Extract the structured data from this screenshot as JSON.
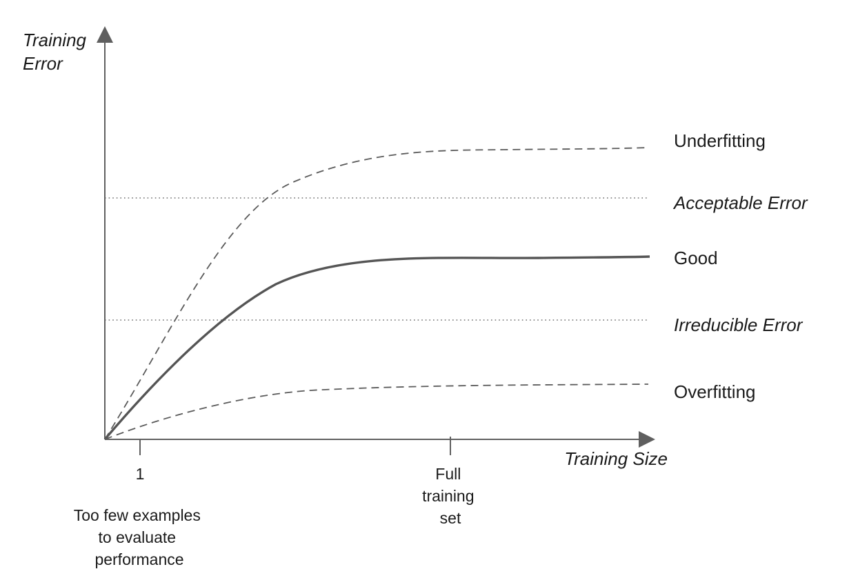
{
  "axes": {
    "y_title": [
      "Training",
      "Error"
    ],
    "x_title": "Training Size"
  },
  "ticks": [
    {
      "label": [
        "1"
      ],
      "note": [
        "Too few examples",
        "to evaluate",
        "performance"
      ]
    },
    {
      "label": [
        "Full",
        "training",
        "set"
      ]
    }
  ],
  "reference_lines": [
    {
      "name": "acceptable",
      "label": "Acceptable Error"
    },
    {
      "name": "irreducible",
      "label": "Irreducible Error"
    }
  ],
  "curves": [
    {
      "name": "underfitting",
      "label": "Underfitting",
      "style": "dashed"
    },
    {
      "name": "good",
      "label": "Good",
      "style": "solid"
    },
    {
      "name": "overfitting",
      "label": "Overfitting",
      "style": "dashed"
    }
  ],
  "colors": {
    "axis": "#5f5f5f",
    "curve": "#555555",
    "text": "#1a1a1a"
  }
}
